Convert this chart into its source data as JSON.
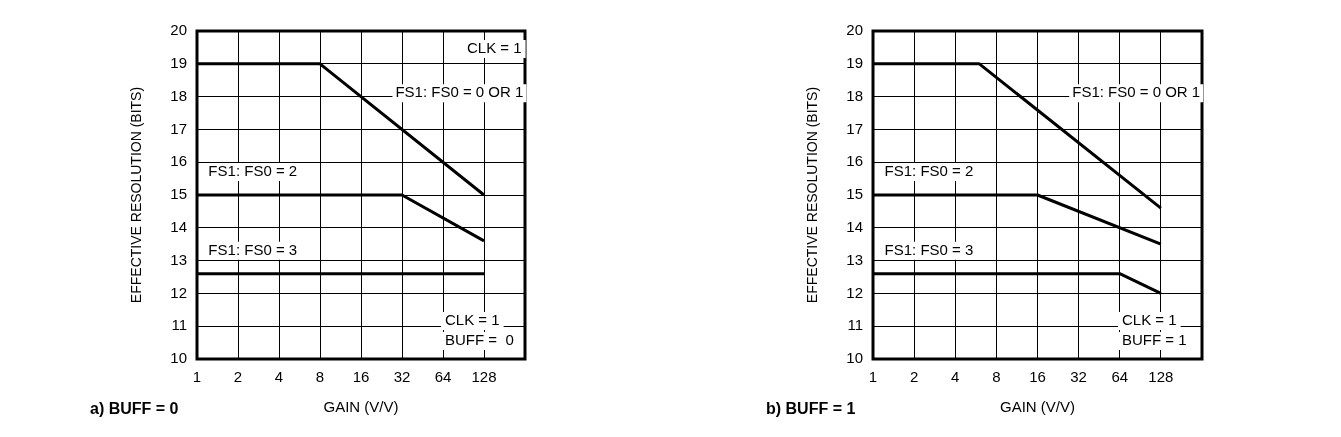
{
  "chart_data": [
    {
      "type": "line",
      "title": "a) BUFF = 0",
      "xlabel": "GAIN (V/V)",
      "ylabel": "EFFECTIVE RESOLUTION (BITS)",
      "log": "x",
      "xlim": [
        1,
        256
      ],
      "xticks": [
        1,
        2,
        4,
        8,
        16,
        32,
        64,
        128
      ],
      "ylim": [
        10,
        20
      ],
      "yticks": [
        10,
        11,
        12,
        13,
        14,
        15,
        16,
        17,
        18,
        19,
        20
      ],
      "grid": true,
      "legend": false,
      "marker": "none",
      "annotations": [
        "CLK = 1",
        "CLK = 1",
        "BUFF =  0"
      ],
      "series": [
        {
          "name": "FS1: FS0 = 0 OR 1",
          "color": "#000000",
          "x": [
            1,
            8,
            128
          ],
          "values": [
            19,
            19,
            15
          ]
        },
        {
          "name": "FS1: FS0 = 2",
          "color": "#000000",
          "x": [
            1,
            32,
            128
          ],
          "values": [
            15,
            15,
            13.6
          ]
        },
        {
          "name": "FS1: FS0 = 3",
          "color": "#000000",
          "x": [
            1,
            128
          ],
          "values": [
            12.6,
            12.6
          ]
        }
      ]
    },
    {
      "type": "line",
      "title": "b) BUFF = 1",
      "xlabel": "GAIN (V/V)",
      "ylabel": "EFFECTIVE RESOLUTION (BITS)",
      "log": "x",
      "xlim": [
        1,
        256
      ],
      "xticks": [
        1,
        2,
        4,
        8,
        16,
        32,
        64,
        128
      ],
      "ylim": [
        10,
        20
      ],
      "yticks": [
        10,
        11,
        12,
        13,
        14,
        15,
        16,
        17,
        18,
        19,
        20
      ],
      "grid": true,
      "legend": false,
      "marker": "none",
      "annotations": [
        "CLK = 1",
        "BUFF = 1"
      ],
      "series": [
        {
          "name": "FS1: FS0 = 0 OR 1",
          "color": "#000000",
          "x": [
            1,
            6,
            128
          ],
          "values": [
            19,
            19,
            14.6
          ]
        },
        {
          "name": "FS1: FS0 = 2",
          "color": "#000000",
          "x": [
            1,
            16,
            128
          ],
          "values": [
            15,
            15,
            13.5
          ]
        },
        {
          "name": "FS1: FS0 = 3",
          "color": "#000000",
          "x": [
            1,
            64,
            128
          ],
          "values": [
            12.6,
            12.6,
            12
          ]
        }
      ]
    }
  ]
}
